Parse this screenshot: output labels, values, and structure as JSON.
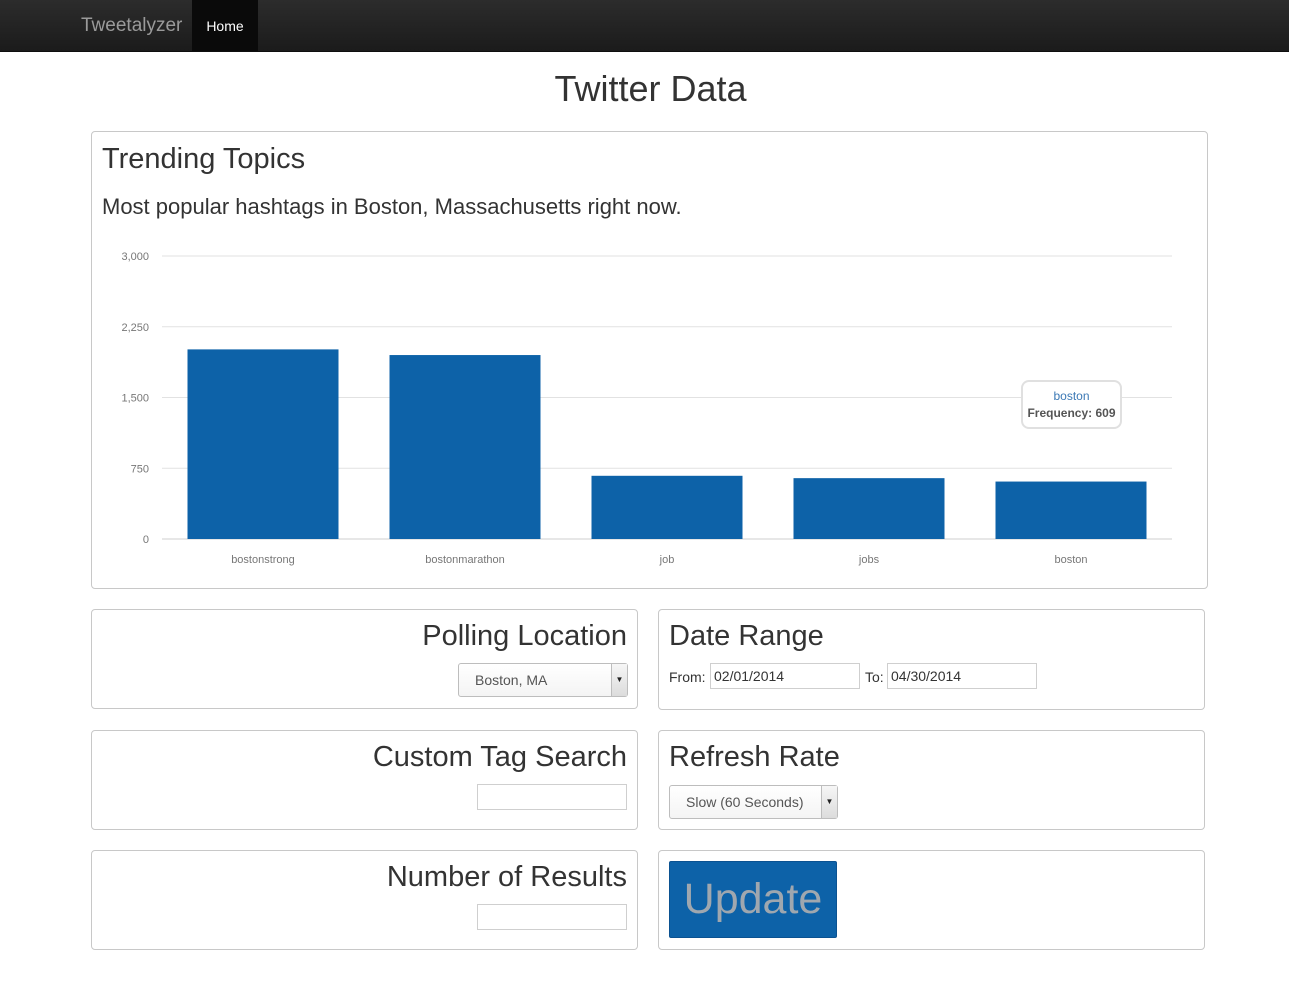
{
  "nav": {
    "brand": "Tweetalyzer",
    "home": "Home"
  },
  "page_title": "Twitter Data",
  "trending": {
    "title": "Trending Topics",
    "subtitle": "Most popular hashtags in Boston, Massachusetts right now."
  },
  "chart_data": {
    "type": "bar",
    "categories": [
      "bostonstrong",
      "bostonmarathon",
      "job",
      "jobs",
      "boston"
    ],
    "values": [
      2010,
      1950,
      670,
      645,
      609
    ],
    "ylim": [
      0,
      3000
    ],
    "yticks": [
      0,
      750,
      1500,
      2250,
      3000
    ],
    "ytick_labels": [
      "0",
      "750",
      "1,500",
      "2,250",
      "3,000"
    ],
    "grid": true,
    "bar_color": "#0d62a8",
    "tooltip": {
      "category": "boston",
      "label": "Frequency: 609"
    }
  },
  "polling": {
    "title": "Polling Location",
    "selected": "Boston, MA"
  },
  "date_range": {
    "title": "Date Range",
    "from_label": "From:",
    "from_value": "02/01/2014",
    "to_label": "To:",
    "to_value": "04/30/2014"
  },
  "custom_tag": {
    "title": "Custom Tag Search",
    "value": ""
  },
  "refresh": {
    "title": "Refresh Rate",
    "selected": "Slow (60 Seconds)"
  },
  "num_results": {
    "title": "Number of Results",
    "value": ""
  },
  "update": {
    "label": "Update"
  }
}
